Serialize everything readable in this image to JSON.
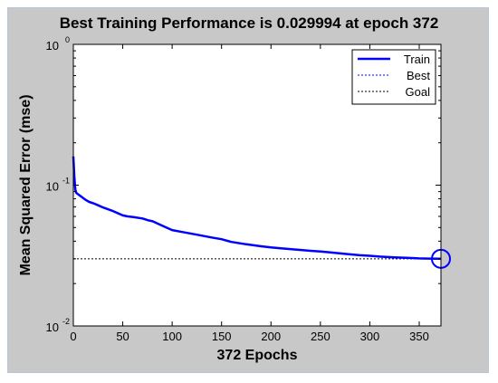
{
  "chart_data": {
    "type": "line",
    "title": "Best Training Performance is 0.029994 at epoch 372",
    "xlabel": "372 Epochs",
    "ylabel": "Mean Squared Error  (mse)",
    "xlim": [
      0,
      372
    ],
    "ylim": [
      0.01,
      1
    ],
    "yscale": "log",
    "grid": false,
    "legend_position": "top-right",
    "x_ticks": [
      0,
      50,
      100,
      150,
      200,
      250,
      300,
      350
    ],
    "y_ticks": [
      {
        "base": "10",
        "exp": "-2",
        "value": 0.01
      },
      {
        "base": "10",
        "exp": "-1",
        "value": 0.1
      },
      {
        "base": "10",
        "exp": "0",
        "value": 1
      }
    ],
    "series": [
      {
        "name": "Train",
        "style": "solid",
        "color": "#0000ff",
        "x": [
          0,
          1,
          2,
          3,
          5,
          8,
          12,
          16,
          20,
          25,
          30,
          40,
          50,
          55,
          60,
          70,
          75,
          80,
          90,
          100,
          110,
          125,
          140,
          150,
          160,
          175,
          190,
          200,
          210,
          225,
          240,
          250,
          260,
          275,
          290,
          300,
          310,
          325,
          340,
          350,
          360,
          372
        ],
        "y": [
          0.16,
          0.115,
          0.093,
          0.088,
          0.086,
          0.083,
          0.079,
          0.076,
          0.0745,
          0.072,
          0.0695,
          0.0655,
          0.061,
          0.06,
          0.0595,
          0.058,
          0.0565,
          0.0555,
          0.0515,
          0.048,
          0.0465,
          0.0445,
          0.0425,
          0.0413,
          0.0395,
          0.038,
          0.0368,
          0.0361,
          0.0356,
          0.0349,
          0.0342,
          0.0338,
          0.0333,
          0.0325,
          0.0318,
          0.0315,
          0.0311,
          0.0307,
          0.0304,
          0.0302,
          0.0301,
          0.029994
        ]
      },
      {
        "name": "Best",
        "style": "dotted",
        "color": "#0000ff",
        "x_value": 372,
        "y_value": 0.029994
      },
      {
        "name": "Goal",
        "style": "dotted",
        "color": "#000000",
        "y_value": 0.029994
      }
    ],
    "annotations": [
      {
        "type": "circle-marker",
        "x": 372,
        "y": 0.029994,
        "color": "#0000ff"
      }
    ]
  }
}
